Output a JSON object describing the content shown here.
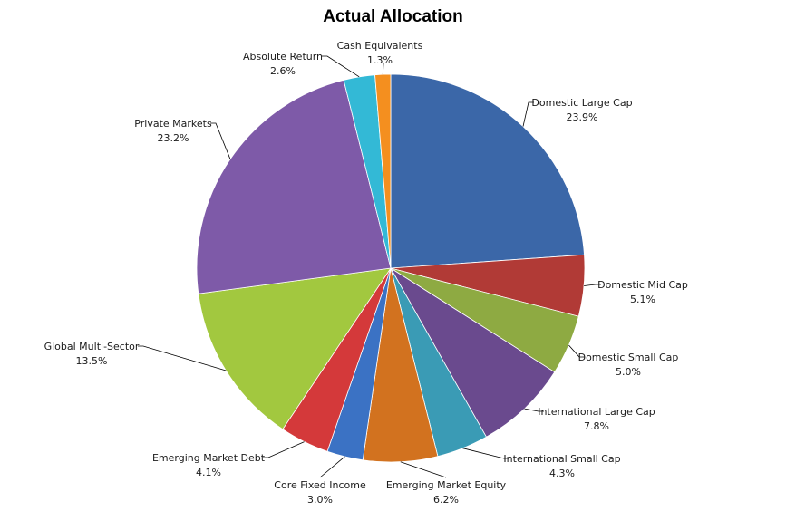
{
  "chart_data": {
    "type": "pie",
    "title": "Actual Allocation",
    "start_angle_deg": 0,
    "direction": "clockwise",
    "slices": [
      {
        "label": "Domestic Large Cap",
        "value": 23.9,
        "display": "23.9%",
        "color": "#3b67a8"
      },
      {
        "label": "Domestic Mid Cap",
        "value": 5.1,
        "display": "5.1%",
        "color": "#b13a36"
      },
      {
        "label": "Domestic Small Cap",
        "value": 5.0,
        "display": "5.0%",
        "color": "#8eaa42"
      },
      {
        "label": "International Large Cap",
        "value": 7.8,
        "display": "7.8%",
        "color": "#6a4a8e"
      },
      {
        "label": "International Small Cap",
        "value": 4.3,
        "display": "4.3%",
        "color": "#3a9bb5"
      },
      {
        "label": "Emerging Market Equity",
        "value": 6.2,
        "display": "6.2%",
        "color": "#d2721f"
      },
      {
        "label": "Core Fixed Income",
        "value": 3.0,
        "display": "3.0%",
        "color": "#3b72c4"
      },
      {
        "label": "Emerging Market Debt",
        "value": 4.1,
        "display": "4.1%",
        "color": "#d4393a"
      },
      {
        "label": "Global Multi-Sector",
        "value": 13.5,
        "display": "13.5%",
        "color": "#a2c83f"
      },
      {
        "label": "Private Markets",
        "value": 23.2,
        "display": "23.2%",
        "color": "#7e5aa8"
      },
      {
        "label": "Absolute Return",
        "value": 2.6,
        "display": "2.6%",
        "color": "#33b9d6"
      },
      {
        "label": "Cash Equivalents",
        "value": 1.3,
        "display": "1.3%",
        "color": "#f48f1f"
      }
    ]
  }
}
